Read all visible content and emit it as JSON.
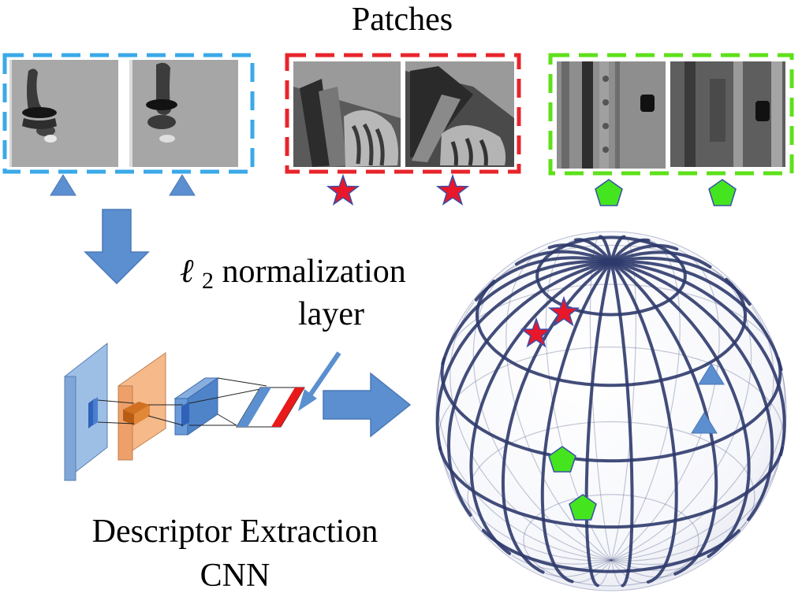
{
  "title": "Patches",
  "normalization_label": {
    "symbol": "ℓ",
    "subscript": "2",
    "line1_rest": " normalization",
    "line2": "layer"
  },
  "cnn_label": {
    "line1": "Descriptor Extraction",
    "line2": "CNN"
  },
  "groups": [
    {
      "name": "triangle-group",
      "border_color": "#3aa9e8",
      "marker": "triangle",
      "marker_color": "#5b8fcf",
      "patch_count": 2
    },
    {
      "name": "star-group",
      "border_color": "#e8242b",
      "marker": "star",
      "marker_color": "#e8172a",
      "patch_count": 2
    },
    {
      "name": "pentagon-group",
      "border_color": "#5ee01a",
      "marker": "pentagon",
      "marker_color": "#44e51f",
      "patch_count": 2
    }
  ],
  "colors": {
    "arrow": "#5b8fcf",
    "cnn_layer_blue": "#8fb3de",
    "cnn_layer_orange": "#f2b07a",
    "cnn_layer_dark_blue": "#5d93d2",
    "descriptor_red": "#e81a1a",
    "sphere_lines": "#2d3a6b"
  }
}
